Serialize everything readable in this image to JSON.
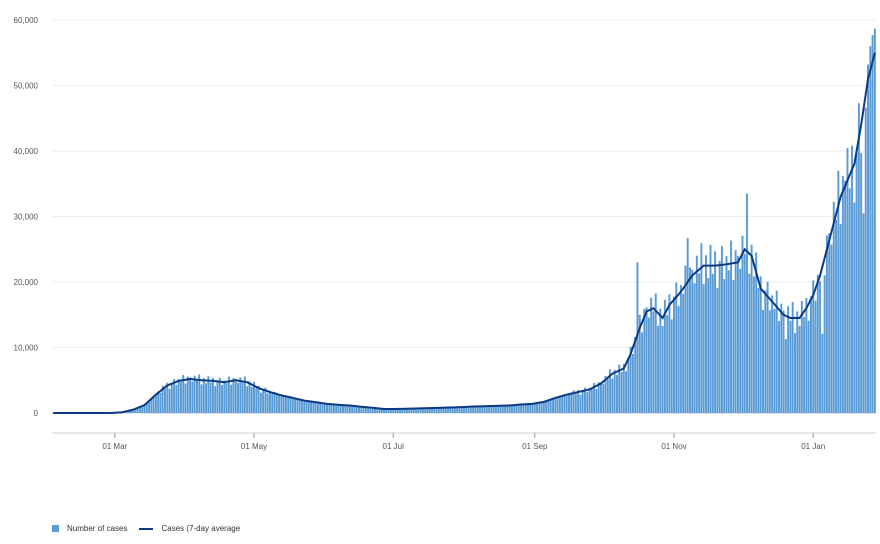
{
  "chart_data": {
    "type": "bar",
    "start_date": "2020-02-03",
    "y_ticks": [
      "0",
      "10,000",
      "20,000",
      "30,000",
      "40,000",
      "50,000",
      "60,000"
    ],
    "x_ticks": [
      "01 Mar",
      "01 May",
      "01 Jul",
      "01 Sep",
      "01 Nov",
      "01 Jan"
    ],
    "ylim": [
      0,
      60000
    ],
    "grid": true,
    "legend_position": "bottom-left",
    "series": [
      {
        "name": "Number of cases",
        "type": "bar",
        "color": "#5b9bd5"
      },
      {
        "name": "Cases (7-day average",
        "type": "line",
        "color": "#0b3a82"
      }
    ],
    "anchors": [
      [
        0,
        0
      ],
      [
        20,
        0
      ],
      [
        26,
        10
      ],
      [
        30,
        100
      ],
      [
        35,
        500
      ],
      [
        40,
        1200
      ],
      [
        45,
        2800
      ],
      [
        50,
        4200
      ],
      [
        55,
        4900
      ],
      [
        60,
        5200
      ],
      [
        65,
        5000
      ],
      [
        70,
        4900
      ],
      [
        75,
        4700
      ],
      [
        80,
        5000
      ],
      [
        85,
        4700
      ],
      [
        90,
        3800
      ],
      [
        95,
        3200
      ],
      [
        100,
        2700
      ],
      [
        105,
        2300
      ],
      [
        110,
        1900
      ],
      [
        115,
        1650
      ],
      [
        120,
        1400
      ],
      [
        125,
        1250
      ],
      [
        130,
        1150
      ],
      [
        135,
        950
      ],
      [
        140,
        800
      ],
      [
        145,
        620
      ],
      [
        150,
        620
      ],
      [
        155,
        650
      ],
      [
        160,
        700
      ],
      [
        165,
        750
      ],
      [
        170,
        800
      ],
      [
        175,
        850
      ],
      [
        180,
        920
      ],
      [
        185,
        1000
      ],
      [
        190,
        1050
      ],
      [
        195,
        1100
      ],
      [
        200,
        1150
      ],
      [
        205,
        1300
      ],
      [
        210,
        1400
      ],
      [
        215,
        1700
      ],
      [
        220,
        2300
      ],
      [
        225,
        2800
      ],
      [
        230,
        3200
      ],
      [
        235,
        3600
      ],
      [
        240,
        4500
      ],
      [
        245,
        6000
      ],
      [
        250,
        6800
      ],
      [
        253,
        9000
      ],
      [
        257,
        13000
      ],
      [
        260,
        15500
      ],
      [
        263,
        16000
      ],
      [
        267,
        14500
      ],
      [
        270,
        16500
      ],
      [
        275,
        18500
      ],
      [
        280,
        21000
      ],
      [
        285,
        22500
      ],
      [
        290,
        22500
      ],
      [
        295,
        22700
      ],
      [
        300,
        23000
      ],
      [
        303,
        25000
      ],
      [
        306,
        24000
      ],
      [
        310,
        19000
      ],
      [
        315,
        17000
      ],
      [
        320,
        15000
      ],
      [
        323,
        14500
      ],
      [
        327,
        14500
      ],
      [
        330,
        16000
      ],
      [
        333,
        18000
      ],
      [
        336,
        21000
      ],
      [
        339,
        25000
      ],
      [
        342,
        29000
      ],
      [
        345,
        33000
      ],
      [
        348,
        35500
      ],
      [
        351,
        38000
      ],
      [
        354,
        44000
      ],
      [
        357,
        51000
      ],
      [
        360,
        55000
      ]
    ],
    "bar_noise": [
      0.03,
      -0.05,
      0.08,
      -0.02,
      0.12,
      -0.09,
      0.05,
      -0.06,
      0.1,
      -0.04,
      0.07,
      -0.11,
      0.02,
      0.09,
      -0.07,
      0.04,
      -0.03,
      0.11,
      -0.08,
      0.06
    ],
    "spikes": [
      [
        304,
        33500
      ],
      [
        256,
        23000
      ],
      [
        278,
        26700
      ],
      [
        347,
        35500
      ],
      [
        352,
        39800
      ],
      [
        357,
        53200
      ],
      [
        360,
        58700
      ],
      [
        359,
        57700
      ],
      [
        358,
        56000
      ],
      [
        355,
        30500
      ],
      [
        321,
        11300
      ],
      [
        325,
        12200
      ],
      [
        337,
        12100
      ]
    ]
  }
}
